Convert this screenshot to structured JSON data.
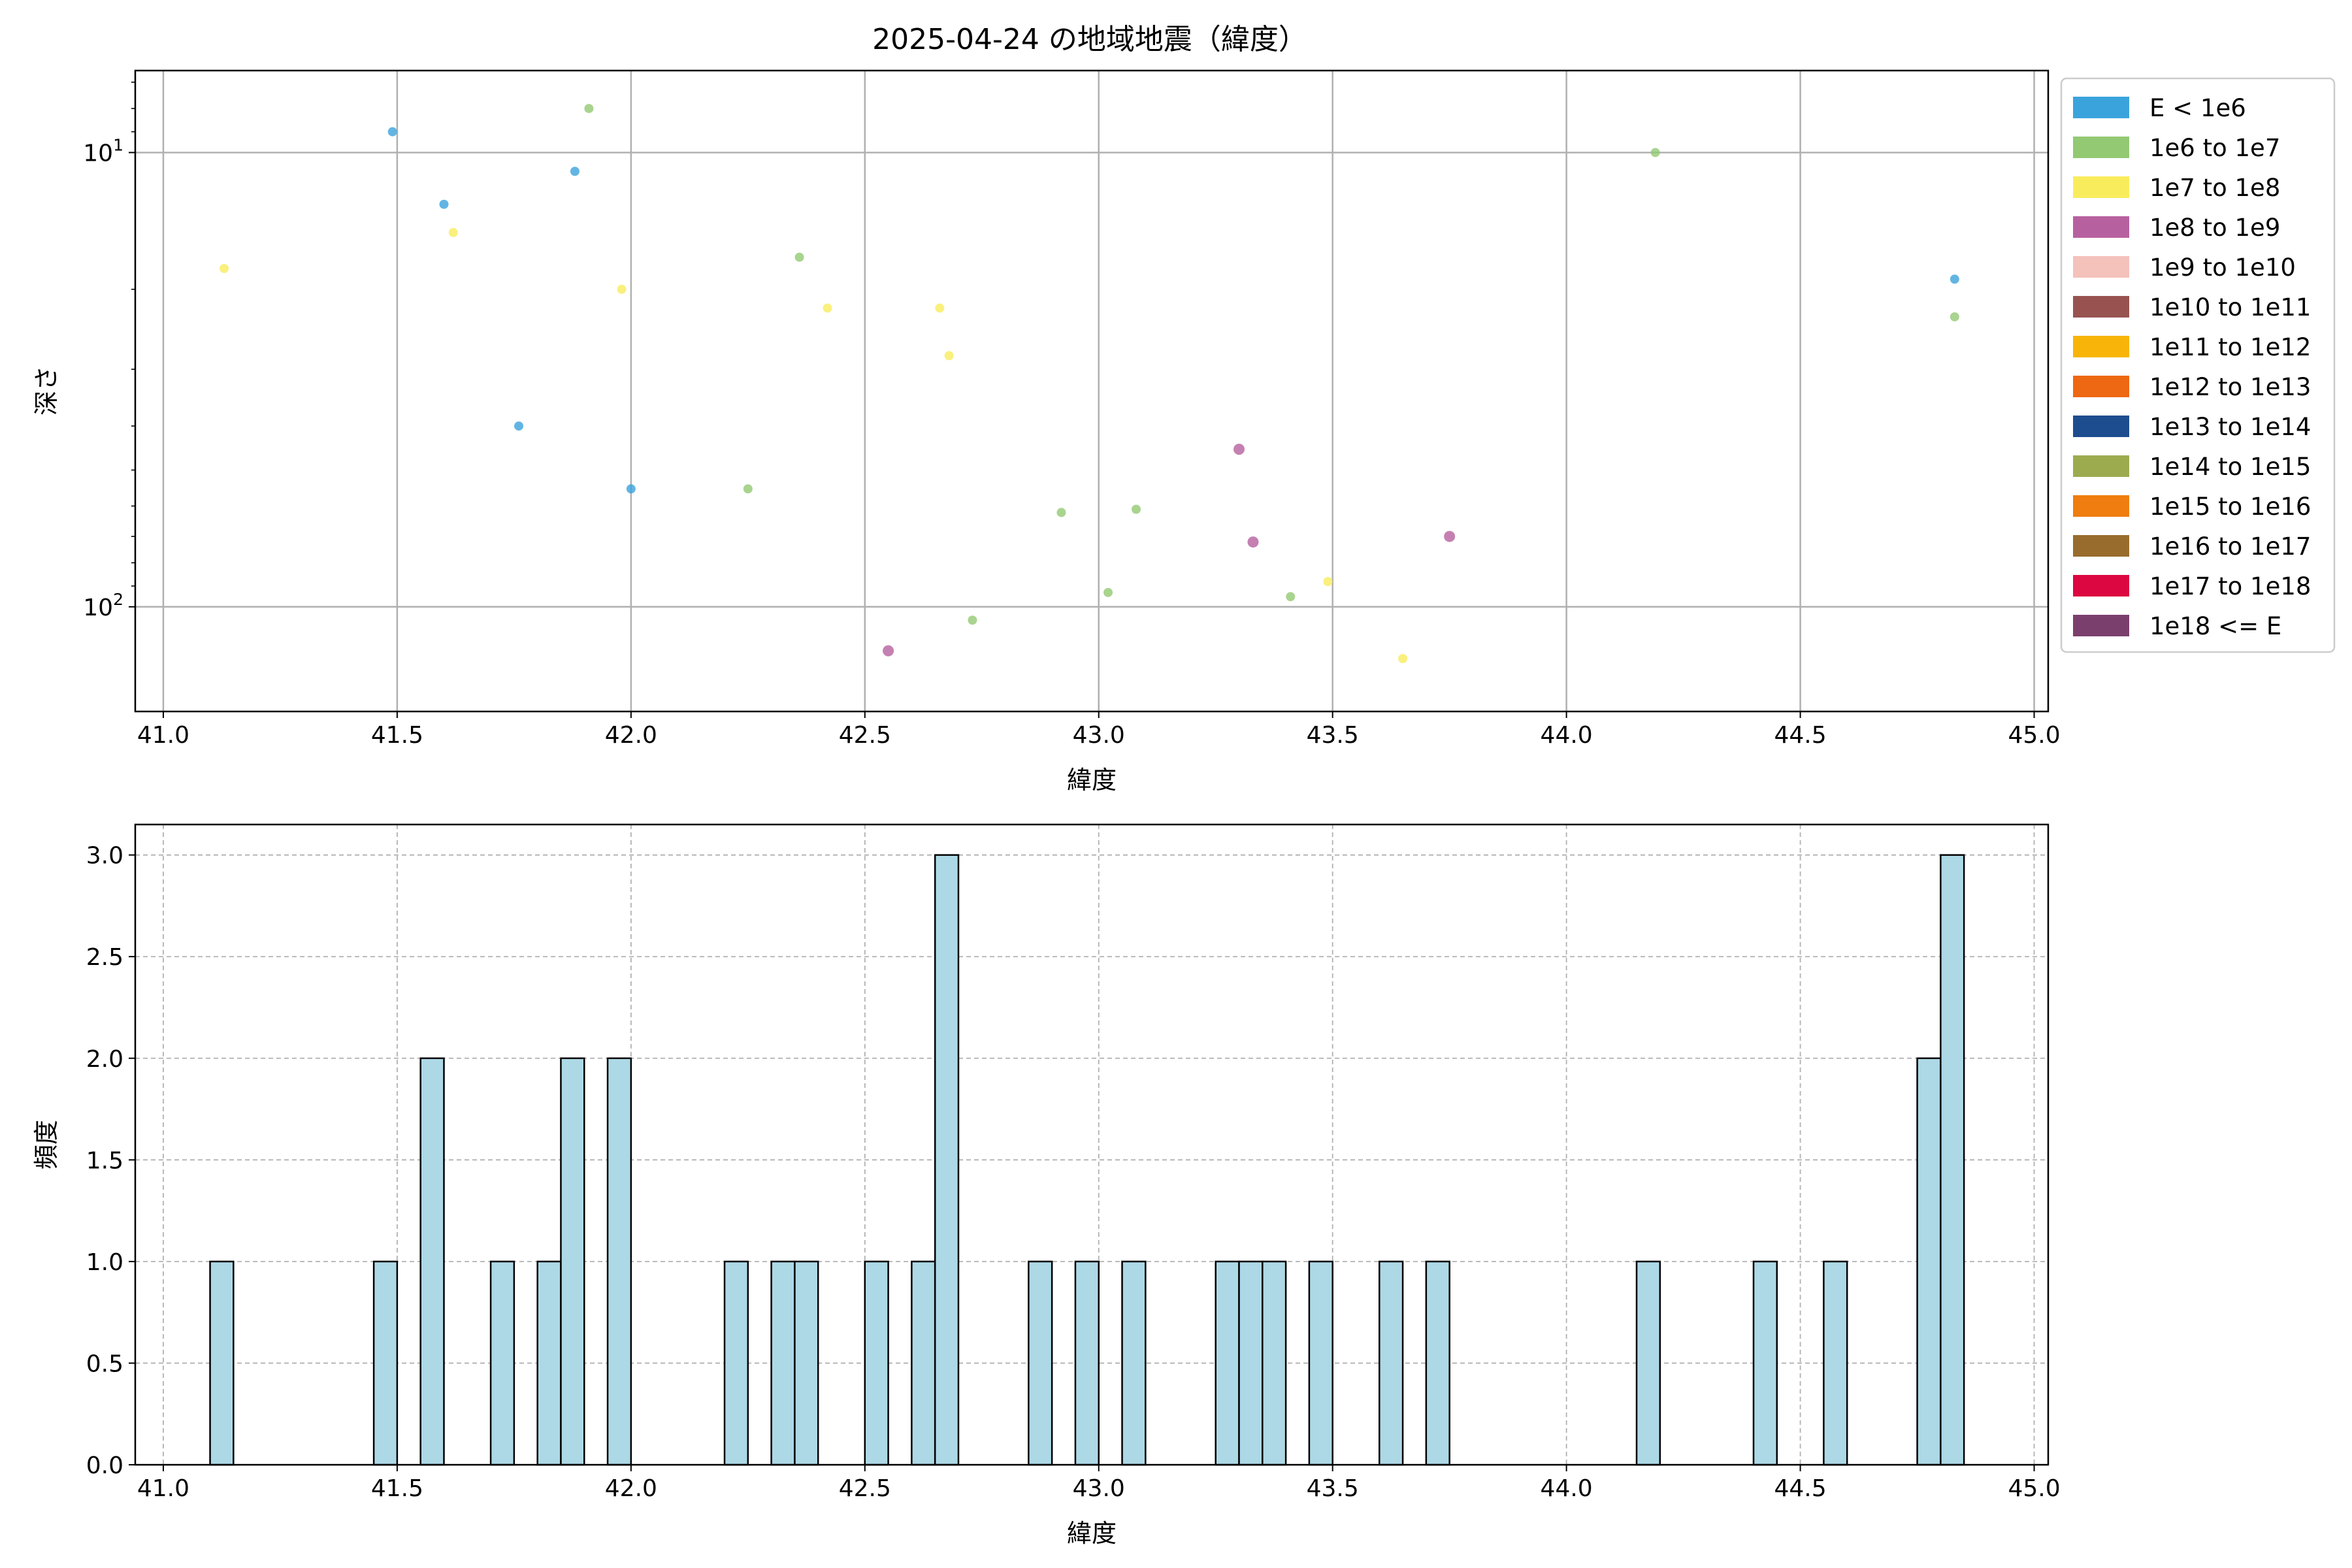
{
  "figure_title": "2025-04-24 の地域地震（緯度）",
  "chart_data": [
    {
      "type": "scatter",
      "xlabel": "緯度",
      "ylabel": "深さ",
      "xlim": [
        40.94,
        45.03
      ],
      "ylim": [
        170,
        6.6
      ],
      "y_scale": "log",
      "y_inverted": true,
      "x_ticks": [
        "41.0",
        "41.5",
        "42.0",
        "42.5",
        "43.0",
        "43.5",
        "44.0",
        "44.5",
        "45.0"
      ],
      "y_ticks": [
        {
          "value": 10,
          "base": "10",
          "exp": "1"
        },
        {
          "value": 100,
          "base": "10",
          "exp": "2"
        }
      ],
      "grid": true,
      "legend_position": "outside-right",
      "legend": [
        {
          "label": "E < 1e6",
          "color": "#3ba3dc"
        },
        {
          "label": "1e6 to 1e7",
          "color": "#93c973"
        },
        {
          "label": "1e7 to 1e8",
          "color": "#f9ec5c"
        },
        {
          "label": "1e8 to 1e9",
          "color": "#b7609f"
        },
        {
          "label": "1e9 to 1e10",
          "color": "#f4c1bb"
        },
        {
          "label": "1e10 to 1e11",
          "color": "#985350"
        },
        {
          "label": "1e11 to 1e12",
          "color": "#f8b409"
        },
        {
          "label": "1e12 to 1e13",
          "color": "#ee6712"
        },
        {
          "label": "1e13 to 1e14",
          "color": "#1e4d8f"
        },
        {
          "label": "1e14 to 1e15",
          "color": "#9dab4f"
        },
        {
          "label": "1e15 to 1e16",
          "color": "#ef7d10"
        },
        {
          "label": "1e16 to 1e17",
          "color": "#986c2c"
        },
        {
          "label": "1e17 to 1e18",
          "color": "#dc0641"
        },
        {
          "label": "1e18 <= E",
          "color": "#7b3f6d"
        }
      ],
      "points": [
        {
          "x": 41.49,
          "y": 9.0,
          "cls": 0
        },
        {
          "x": 41.6,
          "y": 13.0,
          "cls": 0
        },
        {
          "x": 41.88,
          "y": 11.0,
          "cls": 0
        },
        {
          "x": 41.76,
          "y": 40.0,
          "cls": 0
        },
        {
          "x": 42.0,
          "y": 55.0,
          "cls": 0
        },
        {
          "x": 44.83,
          "y": 19.0,
          "cls": 0
        },
        {
          "x": 41.91,
          "y": 8.0,
          "cls": 1
        },
        {
          "x": 42.36,
          "y": 17.0,
          "cls": 1
        },
        {
          "x": 42.25,
          "y": 55.0,
          "cls": 1
        },
        {
          "x": 42.73,
          "y": 107.0,
          "cls": 1
        },
        {
          "x": 42.92,
          "y": 62.0,
          "cls": 1
        },
        {
          "x": 43.02,
          "y": 93.0,
          "cls": 1
        },
        {
          "x": 43.08,
          "y": 61.0,
          "cls": 1
        },
        {
          "x": 43.41,
          "y": 95.0,
          "cls": 1
        },
        {
          "x": 44.19,
          "y": 10.0,
          "cls": 1
        },
        {
          "x": 44.83,
          "y": 23.0,
          "cls": 1
        },
        {
          "x": 41.13,
          "y": 18.0,
          "cls": 2
        },
        {
          "x": 41.62,
          "y": 15.0,
          "cls": 2
        },
        {
          "x": 41.98,
          "y": 20.0,
          "cls": 2
        },
        {
          "x": 42.42,
          "y": 22.0,
          "cls": 2
        },
        {
          "x": 42.66,
          "y": 22.0,
          "cls": 2
        },
        {
          "x": 42.68,
          "y": 28.0,
          "cls": 2
        },
        {
          "x": 43.49,
          "y": 88.0,
          "cls": 2
        },
        {
          "x": 43.65,
          "y": 130.0,
          "cls": 2
        },
        {
          "x": 42.55,
          "y": 125.0,
          "cls": 3
        },
        {
          "x": 43.3,
          "y": 45.0,
          "cls": 3
        },
        {
          "x": 43.33,
          "y": 72.0,
          "cls": 3
        },
        {
          "x": 43.75,
          "y": 70.0,
          "cls": 3
        }
      ]
    },
    {
      "type": "bar",
      "subtype": "histogram",
      "xlabel": "緯度",
      "ylabel": "頻度",
      "xlim": [
        40.94,
        45.03
      ],
      "ylim": [
        0,
        3.15
      ],
      "x_ticks": [
        "41.0",
        "41.5",
        "42.0",
        "42.5",
        "43.0",
        "43.5",
        "44.0",
        "44.5",
        "45.0"
      ],
      "y_ticks": [
        "0.0",
        "0.5",
        "1.0",
        "1.5",
        "2.0",
        "2.5",
        "3.0"
      ],
      "grid": true,
      "bar_color": "#add8e6",
      "bin_width": 0.05,
      "bins": [
        {
          "x": 41.125,
          "count": 1
        },
        {
          "x": 41.475,
          "count": 1
        },
        {
          "x": 41.575,
          "count": 2
        },
        {
          "x": 41.725,
          "count": 1
        },
        {
          "x": 41.825,
          "count": 1
        },
        {
          "x": 41.875,
          "count": 2
        },
        {
          "x": 41.975,
          "count": 2
        },
        {
          "x": 42.225,
          "count": 1
        },
        {
          "x": 42.325,
          "count": 1
        },
        {
          "x": 42.375,
          "count": 1
        },
        {
          "x": 42.525,
          "count": 1
        },
        {
          "x": 42.625,
          "count": 1
        },
        {
          "x": 42.675,
          "count": 3
        },
        {
          "x": 42.875,
          "count": 1
        },
        {
          "x": 42.975,
          "count": 1
        },
        {
          "x": 43.075,
          "count": 1
        },
        {
          "x": 43.275,
          "count": 1
        },
        {
          "x": 43.325,
          "count": 1
        },
        {
          "x": 43.375,
          "count": 1
        },
        {
          "x": 43.475,
          "count": 1
        },
        {
          "x": 43.625,
          "count": 1
        },
        {
          "x": 43.725,
          "count": 1
        },
        {
          "x": 44.175,
          "count": 1
        },
        {
          "x": 44.425,
          "count": 1
        },
        {
          "x": 44.575,
          "count": 1
        },
        {
          "x": 44.775,
          "count": 2
        },
        {
          "x": 44.825,
          "count": 3
        }
      ]
    }
  ]
}
